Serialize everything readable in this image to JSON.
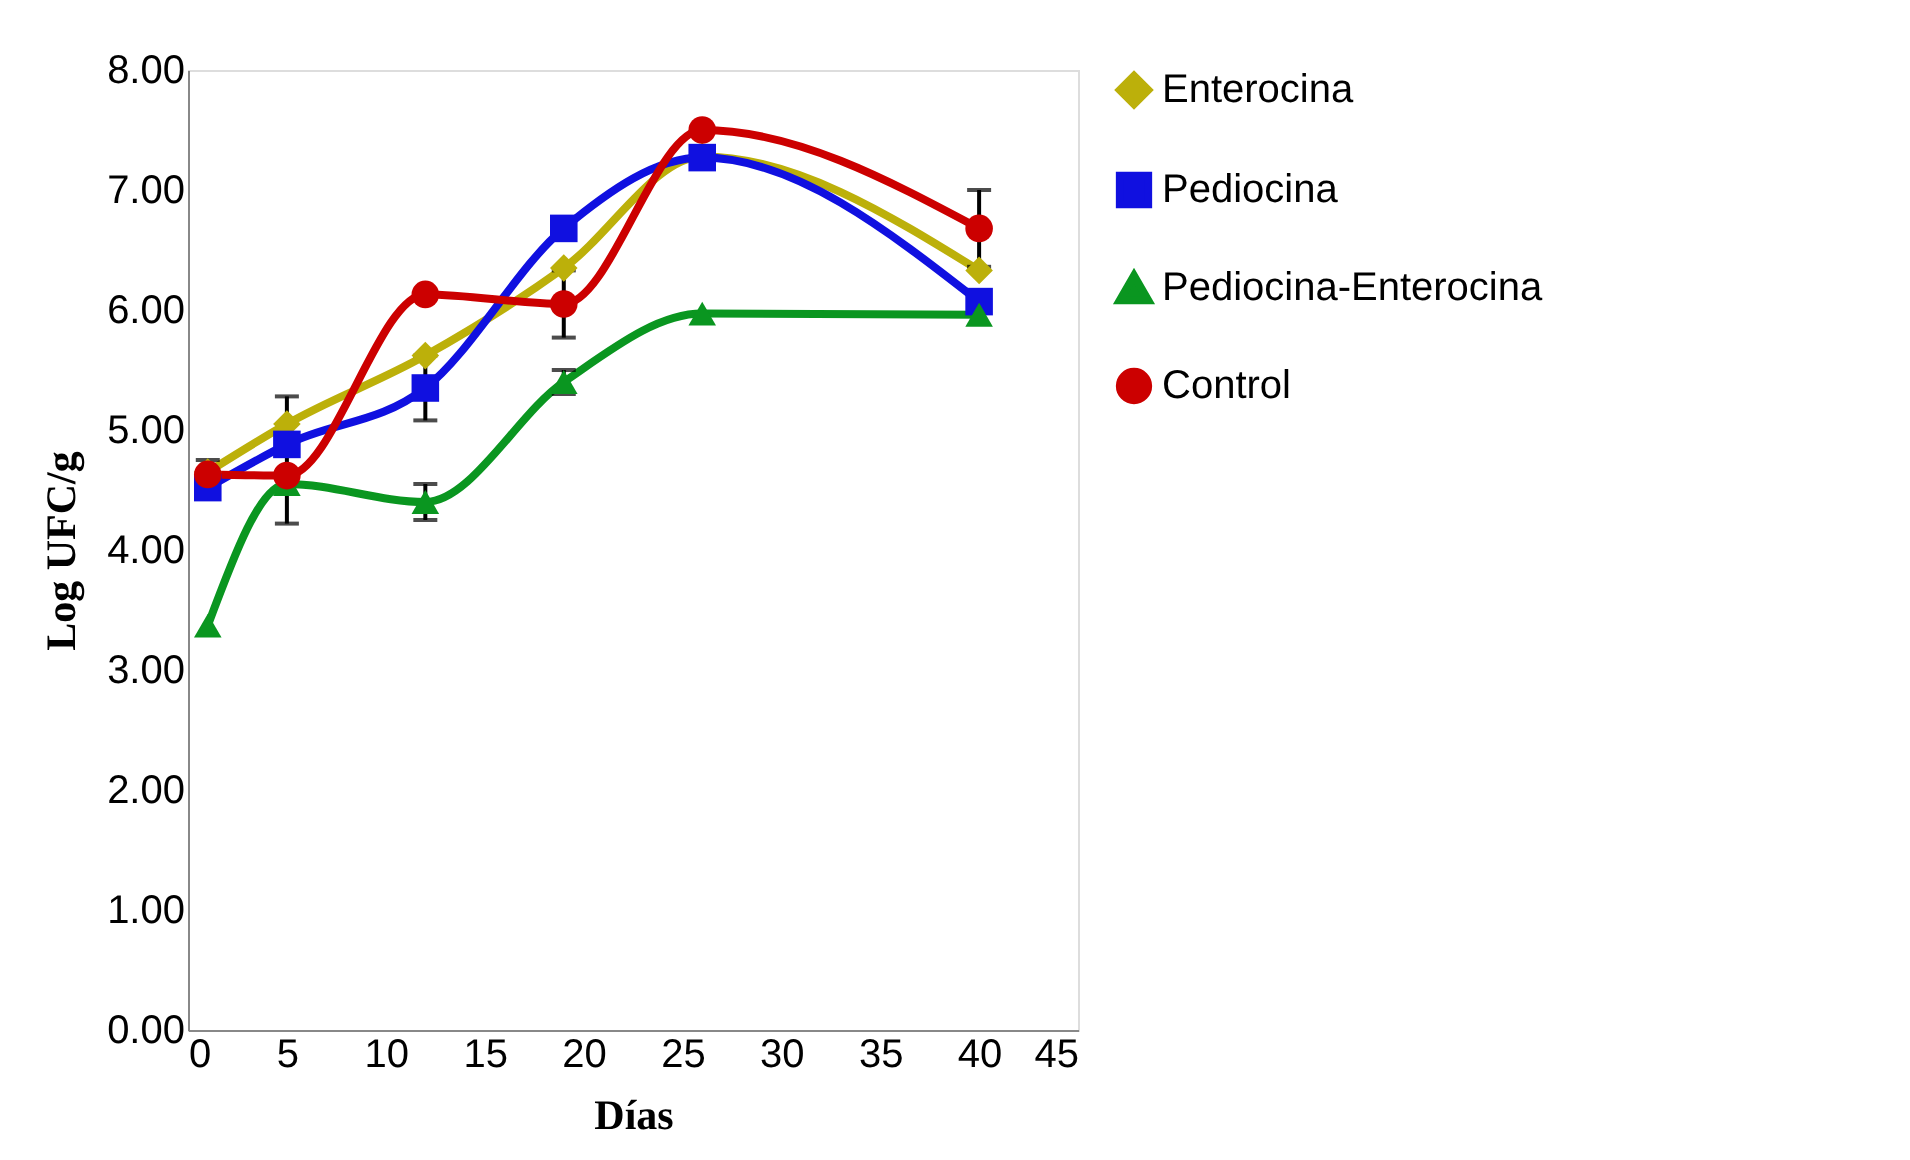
{
  "chart_data": {
    "type": "line",
    "xlabel": "Días",
    "ylabel": "Log UFC/g",
    "x": [
      1,
      5,
      12,
      19,
      26,
      40
    ],
    "xlim": [
      0,
      45
    ],
    "xticks": [
      0,
      5,
      10,
      15,
      20,
      25,
      30,
      35,
      40,
      45
    ],
    "ylim": [
      0,
      8
    ],
    "yticks": [
      {
        "value": 0,
        "label": "0.00"
      },
      {
        "value": 1,
        "label": "1.00"
      },
      {
        "value": 2,
        "label": "2.00"
      },
      {
        "value": 3,
        "label": "3.00"
      },
      {
        "value": 4,
        "label": "4.00"
      },
      {
        "value": 5,
        "label": "5.00"
      },
      {
        "value": 6,
        "label": "6.00"
      },
      {
        "value": 7,
        "label": "7.00"
      },
      {
        "value": 8,
        "label": "8.00"
      }
    ],
    "grid": false,
    "legend": "right",
    "series": [
      {
        "name": "Enterocina",
        "color": "#bcb00a",
        "marker": "diamond",
        "values": [
          4.65,
          5.05,
          5.62,
          6.35,
          7.28,
          6.33
        ],
        "errors": [
          0.1,
          0.23,
          null,
          null,
          null,
          null
        ]
      },
      {
        "name": "Pediocina",
        "color": "#1010e0",
        "marker": "square",
        "values": [
          4.52,
          4.88,
          5.35,
          6.68,
          7.27,
          6.07
        ],
        "errors": [
          null,
          null,
          0.27,
          null,
          null,
          null
        ]
      },
      {
        "name": "Pediocina-Enterocina",
        "color": "#0a9620",
        "marker": "triangle",
        "values": [
          3.37,
          4.55,
          4.4,
          5.4,
          5.97,
          5.96
        ],
        "errors": [
          null,
          0.33,
          0.15,
          0.1,
          null,
          null
        ]
      },
      {
        "name": "Control",
        "color": "#cc0000",
        "marker": "circle",
        "values": [
          4.63,
          4.62,
          6.13,
          6.05,
          7.5,
          6.68
        ],
        "errors": [
          null,
          null,
          null,
          0.28,
          null,
          0.32
        ]
      }
    ]
  }
}
